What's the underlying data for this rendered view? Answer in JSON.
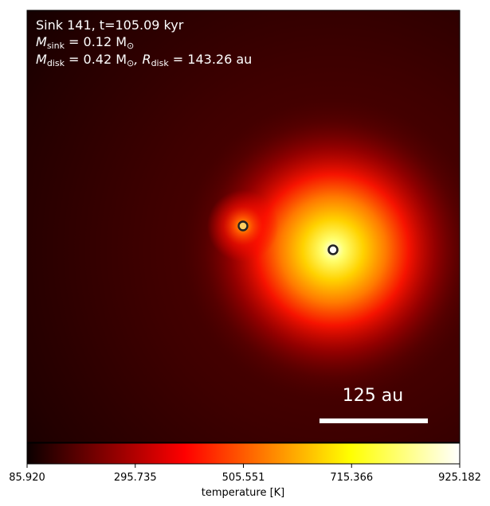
{
  "annotation": {
    "line1": "Sink 141, t=105.09 kyr",
    "line2_prefix": "M",
    "line2_sub": "sink",
    "line2_rest": " = 0.12 M",
    "line2_sun": "⊙",
    "line3_prefix": "M",
    "line3_sub": "disk",
    "line3_mid": " = 0.42 M",
    "line3_sun": "⊙",
    "line3_sep": ", R",
    "line3_sub2": "disk",
    "line3_rest": " = 143.26 au"
  },
  "scalebar": {
    "label": "125 au"
  },
  "colorbar": {
    "label": "temperature [K]",
    "min": 85.92,
    "max": 925.182,
    "ticks": [
      "85.920",
      "295.735",
      "505.551",
      "715.366",
      "925.182"
    ],
    "colormap": "hot"
  },
  "sinks": [
    {
      "name": "secondary-sink"
    },
    {
      "name": "primary-sink"
    }
  ],
  "colors": {
    "hot_dark": "#0b0000",
    "hot_red": "#ff0000",
    "hot_yellow": "#ffff00",
    "hot_white": "#ffffff"
  }
}
